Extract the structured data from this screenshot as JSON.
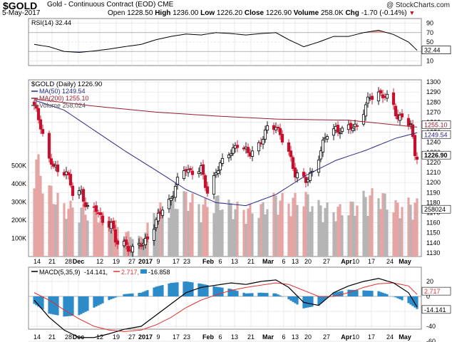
{
  "header": {
    "ticker": "$GOLD",
    "description": "Gold - Continuous Contract (EOD) CME",
    "watermark": "@ StockCharts.com",
    "date": "5-May-2017",
    "open_label": "Open",
    "open": "1228.50",
    "high_label": "High",
    "high": "1236.00",
    "low_label": "Low",
    "low": "1226.20",
    "close_label": "Close",
    "close": "1226.90",
    "volume_label": "Volume",
    "volume": "258.0K",
    "chg_label": "Chg",
    "chg": "-1.70 (-0.14%)",
    "chg_arrow": "▼"
  },
  "rsi": {
    "label": "RSI(14) 32.44",
    "value_box": "32.44",
    "levels": [
      "90",
      "70",
      "50",
      "30",
      "10"
    ],
    "color": "#000000",
    "overbought_fill": "#e8a0a0",
    "oversold_fill": "#7f9ec5"
  },
  "price": {
    "legend_title": "$GOLD (Daily) 1226.90",
    "legend_ma50": "MA(50) 1249.54",
    "legend_ma200": "MA(200) 1255.10",
    "legend_vol": "Volume 258,024",
    "y_ticks": [
      "1300",
      "1290",
      "1280",
      "1270",
      "1260",
      "1250",
      "1240",
      "1230",
      "1220",
      "1210",
      "1200",
      "1190",
      "1180",
      "1170",
      "1160",
      "1150",
      "1140",
      "1130"
    ],
    "vol_ticks": [
      "500K",
      "400K",
      "300K",
      "200K",
      "100K"
    ],
    "last_price_box": "1226.90",
    "ma200_box": "1255.10",
    "ma50_box": "1249.54",
    "vol_box": "258024",
    "up_color": "#000000",
    "down_color": "#c8102e",
    "ma50_color": "#2a2a8a",
    "ma200_color": "#9b1c2c",
    "vol_up_color": "#b5b5b5",
    "vol_down_color": "#e6a5a5"
  },
  "macd": {
    "label_prefix": "MACD(5,35,9)",
    "macd_value": "-14.141,",
    "signal_value": "2.717,",
    "hist_value": "-16.858",
    "y_ticks": [
      "20",
      "0",
      "-20",
      "-40",
      "-60"
    ],
    "signal_box": "2.717",
    "macd_box": "-14.141",
    "hist_color": "#2d8bc9",
    "signal_color": "#e53030"
  },
  "x_axis": {
    "labels": [
      "14",
      "21",
      "28",
      "Dec",
      "12",
      "19",
      "27",
      "2017",
      "9",
      "17",
      "23",
      "Feb",
      "6",
      "13",
      "21",
      "Mar",
      "6",
      "13",
      "20",
      "27",
      "Apr",
      "10",
      "17",
      "24",
      "May"
    ]
  },
  "chart_data": {
    "type": "candlestick",
    "title": "$GOLD (Daily) 1226.90",
    "y_range": [
      1125,
      1305
    ],
    "x_range": [
      "2016-11-07",
      "2017-05-05"
    ],
    "price_keypoints": [
      [
        "2016-11-07",
        1275
      ],
      [
        "2016-11-10",
        1258
      ],
      [
        "2016-11-14",
        1222
      ],
      [
        "2016-11-18",
        1210
      ],
      [
        "2016-11-22",
        1213
      ],
      [
        "2016-11-25",
        1188
      ],
      [
        "2016-11-29",
        1190
      ],
      [
        "2016-12-02",
        1175
      ],
      [
        "2016-12-06",
        1172
      ],
      [
        "2016-12-09",
        1162
      ],
      [
        "2016-12-13",
        1160
      ],
      [
        "2016-12-15",
        1140
      ],
      [
        "2016-12-19",
        1140
      ],
      [
        "2016-12-23",
        1132
      ],
      [
        "2016-12-28",
        1140
      ],
      [
        "2017-01-03",
        1160
      ],
      [
        "2017-01-06",
        1175
      ],
      [
        "2017-01-10",
        1185
      ],
      [
        "2017-01-13",
        1200
      ],
      [
        "2017-01-17",
        1215
      ],
      [
        "2017-01-20",
        1210
      ],
      [
        "2017-01-24",
        1212
      ],
      [
        "2017-01-27",
        1192
      ],
      [
        "2017-01-31",
        1210
      ],
      [
        "2017-02-03",
        1220
      ],
      [
        "2017-02-07",
        1233
      ],
      [
        "2017-02-10",
        1236
      ],
      [
        "2017-02-15",
        1230
      ],
      [
        "2017-02-21",
        1238
      ],
      [
        "2017-02-24",
        1255
      ],
      [
        "2017-02-28",
        1258
      ],
      [
        "2017-03-02",
        1245
      ],
      [
        "2017-03-06",
        1230
      ],
      [
        "2017-03-09",
        1210
      ],
      [
        "2017-03-14",
        1200
      ],
      [
        "2017-03-17",
        1212
      ],
      [
        "2017-03-21",
        1232
      ],
      [
        "2017-03-24",
        1248
      ],
      [
        "2017-03-28",
        1255
      ],
      [
        "2017-03-31",
        1250
      ],
      [
        "2017-04-04",
        1255
      ],
      [
        "2017-04-07",
        1258
      ],
      [
        "2017-04-11",
        1275
      ],
      [
        "2017-04-13",
        1285
      ],
      [
        "2017-04-17",
        1290
      ],
      [
        "2017-04-20",
        1285
      ],
      [
        "2017-04-24",
        1276
      ],
      [
        "2017-04-26",
        1265
      ],
      [
        "2017-04-28",
        1266
      ],
      [
        "2017-05-02",
        1255
      ],
      [
        "2017-05-04",
        1230
      ],
      [
        "2017-05-05",
        1226.9
      ]
    ],
    "ma50_keypoints": [
      [
        "2016-11-07",
        1282
      ],
      [
        "2016-11-21",
        1272
      ],
      [
        "2016-12-05",
        1252
      ],
      [
        "2016-12-19",
        1232
      ],
      [
        "2017-01-03",
        1212
      ],
      [
        "2017-01-17",
        1193
      ],
      [
        "2017-01-31",
        1180
      ],
      [
        "2017-02-14",
        1177
      ],
      [
        "2017-02-28",
        1188
      ],
      [
        "2017-03-14",
        1207
      ],
      [
        "2017-03-28",
        1222
      ],
      [
        "2017-04-11",
        1232
      ],
      [
        "2017-04-25",
        1244
      ],
      [
        "2017-05-05",
        1249.54
      ]
    ],
    "ma200_keypoints": [
      [
        "2016-11-07",
        1283
      ],
      [
        "2016-12-05",
        1276
      ],
      [
        "2017-01-03",
        1270
      ],
      [
        "2017-02-01",
        1266
      ],
      [
        "2017-03-01",
        1263
      ],
      [
        "2017-04-03",
        1262
      ],
      [
        "2017-05-05",
        1255.1
      ]
    ],
    "volume_keypoints": [
      [
        "2016-11-07",
        500
      ],
      [
        "2016-11-14",
        330
      ],
      [
        "2016-11-21",
        250
      ],
      [
        "2016-11-28",
        240
      ],
      [
        "2016-12-05",
        210
      ],
      [
        "2016-12-12",
        190
      ],
      [
        "2016-12-19",
        120
      ],
      [
        "2016-12-27",
        90
      ],
      [
        "2017-01-03",
        230
      ],
      [
        "2017-01-10",
        260
      ],
      [
        "2017-01-17",
        300
      ],
      [
        "2017-01-24",
        250
      ],
      [
        "2017-01-31",
        280
      ],
      [
        "2017-02-07",
        250
      ],
      [
        "2017-02-14",
        230
      ],
      [
        "2017-02-21",
        240
      ],
      [
        "2017-02-28",
        290
      ],
      [
        "2017-03-06",
        270
      ],
      [
        "2017-03-13",
        300
      ],
      [
        "2017-03-20",
        250
      ],
      [
        "2017-03-27",
        230
      ],
      [
        "2017-04-03",
        240
      ],
      [
        "2017-04-10",
        290
      ],
      [
        "2017-04-17",
        310
      ],
      [
        "2017-04-24",
        250
      ],
      [
        "2017-05-01",
        260
      ],
      [
        "2017-05-05",
        258
      ]
    ],
    "rsi_keypoints": [
      [
        "2016-11-07",
        45
      ],
      [
        "2016-11-14",
        40
      ],
      [
        "2016-11-21",
        30
      ],
      [
        "2016-11-28",
        28
      ],
      [
        "2016-12-05",
        31
      ],
      [
        "2016-12-12",
        35
      ],
      [
        "2016-12-19",
        40
      ],
      [
        "2016-12-27",
        45
      ],
      [
        "2017-01-03",
        55
      ],
      [
        "2017-01-10",
        62
      ],
      [
        "2017-01-17",
        67
      ],
      [
        "2017-01-24",
        65
      ],
      [
        "2017-01-31",
        70
      ],
      [
        "2017-02-07",
        68
      ],
      [
        "2017-02-14",
        65
      ],
      [
        "2017-02-21",
        68
      ],
      [
        "2017-02-28",
        70
      ],
      [
        "2017-03-06",
        55
      ],
      [
        "2017-03-13",
        40
      ],
      [
        "2017-03-20",
        50
      ],
      [
        "2017-03-27",
        62
      ],
      [
        "2017-04-03",
        62
      ],
      [
        "2017-04-10",
        70
      ],
      [
        "2017-04-17",
        75
      ],
      [
        "2017-04-24",
        66
      ],
      [
        "2017-05-01",
        50
      ],
      [
        "2017-05-05",
        32.44
      ]
    ],
    "macd_keypoints": [
      [
        "2016-11-07",
        -5
      ],
      [
        "2016-11-14",
        -28
      ],
      [
        "2016-11-21",
        -45
      ],
      [
        "2016-11-28",
        -55
      ],
      [
        "2016-12-05",
        -55
      ],
      [
        "2016-12-12",
        -50
      ],
      [
        "2016-12-19",
        -44
      ],
      [
        "2016-12-27",
        -40
      ],
      [
        "2017-01-03",
        -25
      ],
      [
        "2017-01-10",
        -10
      ],
      [
        "2017-01-17",
        5
      ],
      [
        "2017-01-24",
        12
      ],
      [
        "2017-01-31",
        15
      ],
      [
        "2017-02-07",
        18
      ],
      [
        "2017-02-14",
        16
      ],
      [
        "2017-02-21",
        20
      ],
      [
        "2017-02-28",
        22
      ],
      [
        "2017-03-06",
        12
      ],
      [
        "2017-03-13",
        -8
      ],
      [
        "2017-03-20",
        -12
      ],
      [
        "2017-03-27",
        5
      ],
      [
        "2017-04-03",
        14
      ],
      [
        "2017-04-10",
        20
      ],
      [
        "2017-04-17",
        24
      ],
      [
        "2017-04-24",
        18
      ],
      [
        "2017-05-01",
        5
      ],
      [
        "2017-05-05",
        -14.141
      ]
    ],
    "signal_keypoints": [
      [
        "2016-11-07",
        5
      ],
      [
        "2016-11-14",
        -5
      ],
      [
        "2016-11-21",
        -18
      ],
      [
        "2016-11-28",
        -30
      ],
      [
        "2016-12-05",
        -40
      ],
      [
        "2016-12-12",
        -45
      ],
      [
        "2016-12-19",
        -47
      ],
      [
        "2016-12-27",
        -45
      ],
      [
        "2017-01-03",
        -38
      ],
      [
        "2017-01-10",
        -28
      ],
      [
        "2017-01-17",
        -15
      ],
      [
        "2017-01-24",
        -5
      ],
      [
        "2017-01-31",
        2
      ],
      [
        "2017-02-07",
        8
      ],
      [
        "2017-02-14",
        12
      ],
      [
        "2017-02-21",
        15
      ],
      [
        "2017-02-28",
        18
      ],
      [
        "2017-03-06",
        16
      ],
      [
        "2017-03-13",
        8
      ],
      [
        "2017-03-20",
        0
      ],
      [
        "2017-03-27",
        0
      ],
      [
        "2017-04-03",
        5
      ],
      [
        "2017-04-10",
        12
      ],
      [
        "2017-04-17",
        17
      ],
      [
        "2017-04-24",
        18
      ],
      [
        "2017-05-01",
        14
      ],
      [
        "2017-05-05",
        2.717
      ]
    ]
  }
}
